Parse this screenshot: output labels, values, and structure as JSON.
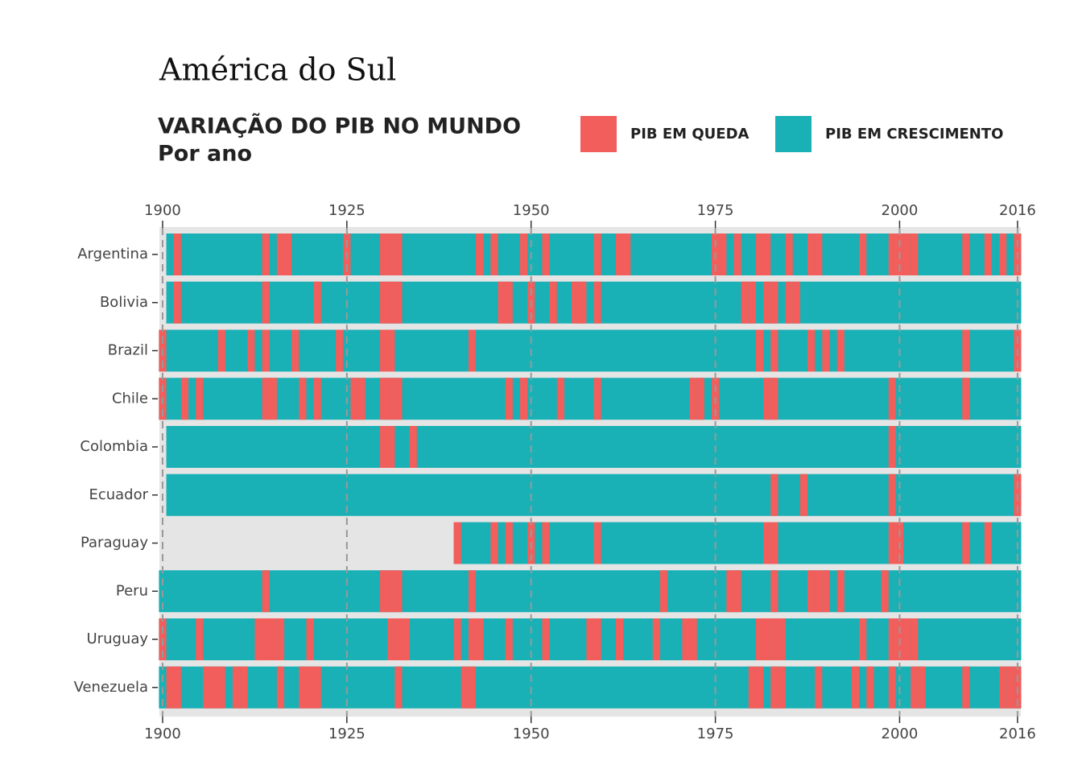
{
  "chart_data": {
    "type": "timeline",
    "title": "América do Sul",
    "subtitle_lines": [
      "VARIAÇÃO DO PIB NO MUNDO",
      "Por ano"
    ],
    "legend": [
      {
        "name": "PIB EM QUEDA",
        "color": "#f25e5b"
      },
      {
        "name": "PIB EM CRESCIMENTO",
        "color": "#19b1b5"
      }
    ],
    "xlim": [
      1899.5,
      2016.5
    ],
    "xticks": [
      1900,
      1925,
      1950,
      1975,
      2000,
      2016
    ],
    "grid": true,
    "categories": [
      "Argentina",
      "Bolivia",
      "Brazil",
      "Chile",
      "Colombia",
      "Ecuador",
      "Paraguay",
      "Peru",
      "Uruguay",
      "Venezuela"
    ],
    "start_years": [
      1901,
      1901,
      1900,
      1900,
      1901,
      1901,
      1940,
      1900,
      1900,
      1900
    ],
    "decline_years": [
      [
        1902,
        1914,
        1916,
        1917,
        1925,
        1930,
        1931,
        1932,
        1943,
        1945,
        1949,
        1952,
        1959,
        1962,
        1963,
        1975,
        1976,
        1978,
        1981,
        1982,
        1985,
        1988,
        1989,
        1995,
        1999,
        2000,
        2001,
        2002,
        2009,
        2012,
        2014,
        2016
      ],
      [
        1902,
        1914,
        1921,
        1930,
        1931,
        1932,
        1946,
        1947,
        1950,
        1953,
        1956,
        1957,
        1959,
        1979,
        1980,
        1982,
        1983,
        1985,
        1986
      ],
      [
        1900,
        1908,
        1912,
        1914,
        1918,
        1924,
        1930,
        1931,
        1942,
        1981,
        1983,
        1988,
        1990,
        1992,
        2009,
        2016
      ],
      [
        1900,
        1903,
        1905,
        1914,
        1915,
        1919,
        1921,
        1926,
        1927,
        1930,
        1931,
        1932,
        1947,
        1949,
        1954,
        1959,
        1972,
        1973,
        1975,
        1982,
        1983,
        1999,
        2009
      ],
      [
        1930,
        1931,
        1934,
        1999
      ],
      [
        1983,
        1987,
        1999,
        2016
      ],
      [
        1940,
        1945,
        1947,
        1950,
        1952,
        1959,
        1982,
        1983,
        1999,
        2000,
        2009,
        2012
      ],
      [
        1914,
        1930,
        1931,
        1932,
        1942,
        1968,
        1977,
        1978,
        1983,
        1988,
        1989,
        1990,
        1992,
        1998
      ],
      [
        1900,
        1905,
        1913,
        1914,
        1915,
        1916,
        1920,
        1931,
        1932,
        1933,
        1940,
        1942,
        1943,
        1947,
        1952,
        1958,
        1959,
        1962,
        1967,
        1971,
        1972,
        1981,
        1982,
        1983,
        1984,
        1995,
        1999,
        2000,
        2001,
        2002
      ],
      [
        1901,
        1902,
        1906,
        1907,
        1908,
        1910,
        1911,
        1916,
        1919,
        1920,
        1921,
        1932,
        1941,
        1942,
        1980,
        1981,
        1983,
        1984,
        1989,
        1994,
        1996,
        1999,
        2002,
        2003,
        2009,
        2014,
        2015,
        2016
      ]
    ]
  }
}
